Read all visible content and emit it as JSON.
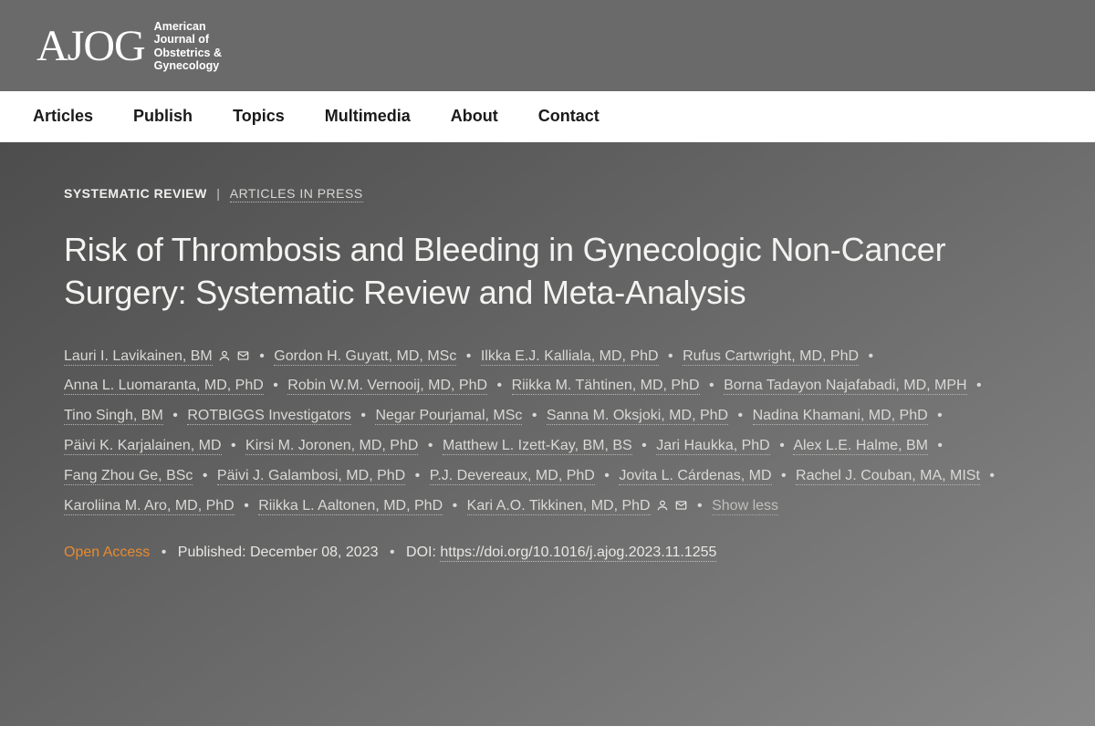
{
  "logo": {
    "main": "AJOG",
    "sub_line1": "American",
    "sub_line2": "Journal of",
    "sub_line3": "Obstetrics &",
    "sub_line4": "Gynecology"
  },
  "nav": {
    "items": [
      "Articles",
      "Publish",
      "Topics",
      "Multimedia",
      "About",
      "Contact"
    ]
  },
  "article": {
    "category": "SYSTEMATIC REVIEW",
    "subcategory": "ARTICLES IN PRESS",
    "title": "Risk of Thrombosis and Bleeding in Gynecologic Non-Cancer Surgery: Systematic Review and Meta-Analysis",
    "authors": [
      {
        "name": "Lauri I. Lavikainen, BM",
        "person_icon": true,
        "mail_icon": true
      },
      {
        "name": "Gordon H. Guyatt, MD, MSc"
      },
      {
        "name": "Ilkka E.J. Kalliala, MD, PhD"
      },
      {
        "name": "Rufus Cartwright, MD, PhD"
      },
      {
        "name": "Anna L. Luomaranta, MD, PhD"
      },
      {
        "name": "Robin W.M. Vernooij, MD, PhD"
      },
      {
        "name": "Riikka M. Tähtinen, MD, PhD"
      },
      {
        "name": "Borna Tadayon Najafabadi, MD, MPH"
      },
      {
        "name": "Tino Singh, BM"
      },
      {
        "name": "ROTBIGGS Investigators"
      },
      {
        "name": "Negar Pourjamal, MSc"
      },
      {
        "name": "Sanna M. Oksjoki, MD, PhD"
      },
      {
        "name": "Nadina Khamani, MD, PhD"
      },
      {
        "name": "Päivi K. Karjalainen, MD"
      },
      {
        "name": "Kirsi M. Joronen, MD, PhD"
      },
      {
        "name": "Matthew L. Izett-Kay, BM, BS"
      },
      {
        "name": "Jari Haukka, PhD"
      },
      {
        "name": "Alex L.E. Halme, BM"
      },
      {
        "name": "Fang Zhou Ge, BSc"
      },
      {
        "name": "Päivi J. Galambosi, MD, PhD"
      },
      {
        "name": "P.J. Devereaux, MD, PhD"
      },
      {
        "name": "Jovita L. Cárdenas, MD"
      },
      {
        "name": "Rachel J. Couban, MA, MISt"
      },
      {
        "name": "Karoliina M. Aro, MD, PhD"
      },
      {
        "name": "Riikka L. Aaltonen, MD, PhD"
      },
      {
        "name": "Kari A.O. Tikkinen, MD, PhD",
        "person_icon": true,
        "mail_icon": true
      }
    ],
    "show_less": "Show less",
    "open_access": "Open Access",
    "published_label": "Published:",
    "published_date": "December 08, 2023",
    "doi_label": "DOI:",
    "doi": "https://doi.org/10.1016/j.ajog.2023.11.1255"
  },
  "colors": {
    "banner_bg": "#6a6a6a",
    "hero_grad_start": "#4d4d4d",
    "hero_grad_end": "#888888",
    "open_access": "#e98a2e",
    "text_light": "#f3f3f1",
    "text_mid": "#d9d9d6"
  }
}
